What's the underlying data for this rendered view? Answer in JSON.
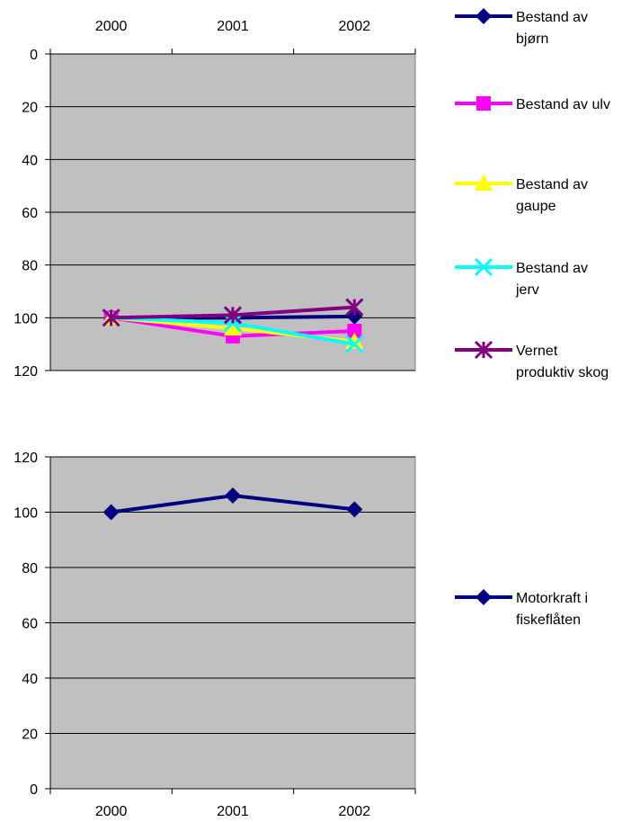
{
  "chart_data": [
    {
      "type": "line",
      "title": "",
      "xlabel": "",
      "ylabel": "",
      "x_axis_position": "top",
      "y_axis_reversed": true,
      "categories": [
        "2000",
        "2001",
        "2002"
      ],
      "ylim": [
        0,
        120
      ],
      "yticks": [
        "0",
        "20",
        "40",
        "60",
        "80",
        "100",
        "120"
      ],
      "grid": true,
      "plot_background": "#c0c0c0",
      "legend_position": "right",
      "series": [
        {
          "name": "Bestand av bjørn",
          "values": [
            100,
            100,
            99.5
          ],
          "color": "#000080",
          "marker": "diamond"
        },
        {
          "name": "Bestand av ulv",
          "values": [
            100,
            107,
            105
          ],
          "color": "#ff00ff",
          "marker": "square"
        },
        {
          "name": "Bestand av gaupe",
          "values": [
            100,
            104,
            109
          ],
          "color": "#ffff00",
          "marker": "triangle"
        },
        {
          "name": "Bestand av jerv",
          "values": [
            100,
            102,
            110
          ],
          "color": "#00ffff",
          "marker": "x"
        },
        {
          "name": "Vernet produktiv skog",
          "values": [
            100,
            99,
            96
          ],
          "color": "#800080",
          "marker": "star"
        }
      ]
    },
    {
      "type": "line",
      "title": "",
      "xlabel": "",
      "ylabel": "",
      "x_axis_position": "bottom",
      "y_axis_reversed": false,
      "categories": [
        "2000",
        "2001",
        "2002"
      ],
      "ylim": [
        0,
        120
      ],
      "yticks": [
        "0",
        "20",
        "40",
        "60",
        "80",
        "100",
        "120"
      ],
      "grid": true,
      "plot_background": "#c0c0c0",
      "legend_position": "right",
      "series": [
        {
          "name": "Motorkraft i fiskeflåten",
          "values": [
            100,
            106,
            101
          ],
          "color": "#000080",
          "marker": "diamond"
        }
      ]
    }
  ]
}
